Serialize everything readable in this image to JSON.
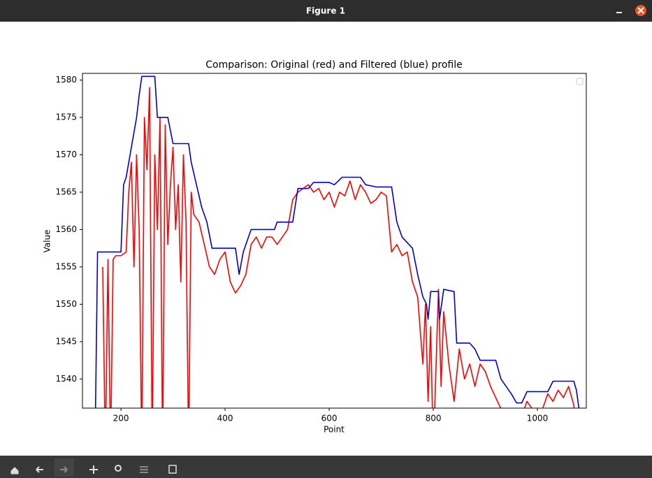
{
  "window": {
    "title": "Figure 1"
  },
  "chart_data": {
    "type": "line",
    "title": "Comparison: Original (red) and Filtered (blue) profile",
    "x_label": "Point",
    "y_label": "Value",
    "xlim": [
      126,
      1094
    ],
    "ylim": [
      1536.1,
      1580.9
    ],
    "xticks": [
      200,
      400,
      600,
      800,
      1000
    ],
    "yticks": [
      1540,
      1545,
      1550,
      1555,
      1560,
      1565,
      1570,
      1575,
      1580
    ],
    "series": [
      {
        "color": "#ff0000",
        "x": [
          165,
          170,
          175,
          180,
          185,
          190,
          200,
          210,
          215,
          220,
          225,
          230,
          235,
          240,
          245,
          250,
          255,
          260,
          265,
          270,
          275,
          280,
          285,
          290,
          295,
          300,
          305,
          310,
          315,
          320,
          325,
          330,
          335,
          340,
          350,
          360,
          370,
          380,
          390,
          400,
          410,
          420,
          430,
          440,
          450,
          460,
          470,
          480,
          490,
          500,
          510,
          520,
          530,
          540,
          550,
          560,
          570,
          580,
          590,
          600,
          610,
          620,
          630,
          640,
          650,
          660,
          670,
          680,
          690,
          700,
          710,
          720,
          730,
          740,
          750,
          760,
          770,
          780,
          785,
          790,
          795,
          800,
          810,
          815,
          820,
          830,
          840,
          850,
          860,
          870,
          880,
          890,
          900,
          910,
          920,
          930,
          940,
          960,
          980,
          990,
          1000,
          1010,
          1020,
          1030,
          1040,
          1050,
          1060,
          1070,
          1075
        ],
        "values": [
          1555,
          1530,
          1556,
          1530,
          1556,
          1556.5,
          1556.5,
          1557,
          1565,
          1569,
          1555,
          1570,
          1560,
          1530,
          1575,
          1568,
          1579,
          1530,
          1570,
          1560,
          1575,
          1530,
          1574,
          1558,
          1566,
          1571,
          1560,
          1566,
          1553,
          1570,
          1561,
          1530,
          1565,
          1562,
          1561,
          1558,
          1555,
          1554,
          1556,
          1557,
          1553,
          1551.5,
          1552.5,
          1554,
          1558,
          1559,
          1557.5,
          1559,
          1559,
          1558,
          1559,
          1560,
          1564,
          1565,
          1565.5,
          1566,
          1565,
          1565.5,
          1564,
          1565,
          1563,
          1565,
          1564.5,
          1566.5,
          1564,
          1566,
          1565,
          1563.5,
          1564,
          1565,
          1564.5,
          1557,
          1558,
          1556.5,
          1557,
          1553,
          1551,
          1542,
          1550,
          1537,
          1547,
          1530,
          1552,
          1539,
          1549,
          1542,
          1537,
          1544,
          1540,
          1542,
          1539,
          1542,
          1541,
          1539,
          1537.5,
          1536,
          1534,
          1533,
          1537,
          1536,
          1530,
          1536,
          1538,
          1537,
          1538.5,
          1537.5,
          1539,
          1536.5,
          1530
        ]
      },
      {
        "color": "#0000cc",
        "x": [
          150,
          155,
          200,
          205,
          210,
          215,
          220,
          230,
          235,
          240,
          265,
          270,
          290,
          300,
          330,
          335,
          345,
          355,
          365,
          375,
          420,
          427,
          435,
          450,
          495,
          500,
          530,
          540,
          560,
          570,
          600,
          610,
          625,
          660,
          670,
          690,
          720,
          730,
          740,
          760,
          770,
          780,
          787,
          790,
          795,
          810,
          812,
          820,
          840,
          845,
          870,
          880,
          890,
          920,
          930,
          950,
          960,
          970,
          980,
          1020,
          1030,
          1070,
          1075,
          1080
        ],
        "values": [
          1530,
          1557,
          1557,
          1566,
          1567,
          1569,
          1571,
          1575,
          1578,
          1580.5,
          1580.5,
          1575,
          1575,
          1571.5,
          1571.5,
          1569,
          1566,
          1563,
          1561,
          1557.5,
          1557.5,
          1554,
          1557,
          1560,
          1560,
          1561,
          1561,
          1565.5,
          1565.5,
          1566.3,
          1566.3,
          1566,
          1567,
          1567,
          1566,
          1565.7,
          1565.7,
          1561,
          1559,
          1557.5,
          1554,
          1551,
          1550,
          1548,
          1551.7,
          1551.7,
          1548,
          1552,
          1551.7,
          1544.8,
          1544.8,
          1544,
          1542.5,
          1542.5,
          1540,
          1538,
          1536.8,
          1536.8,
          1538.3,
          1538.3,
          1539.7,
          1539.7,
          1538.5,
          1536
        ]
      }
    ]
  }
}
